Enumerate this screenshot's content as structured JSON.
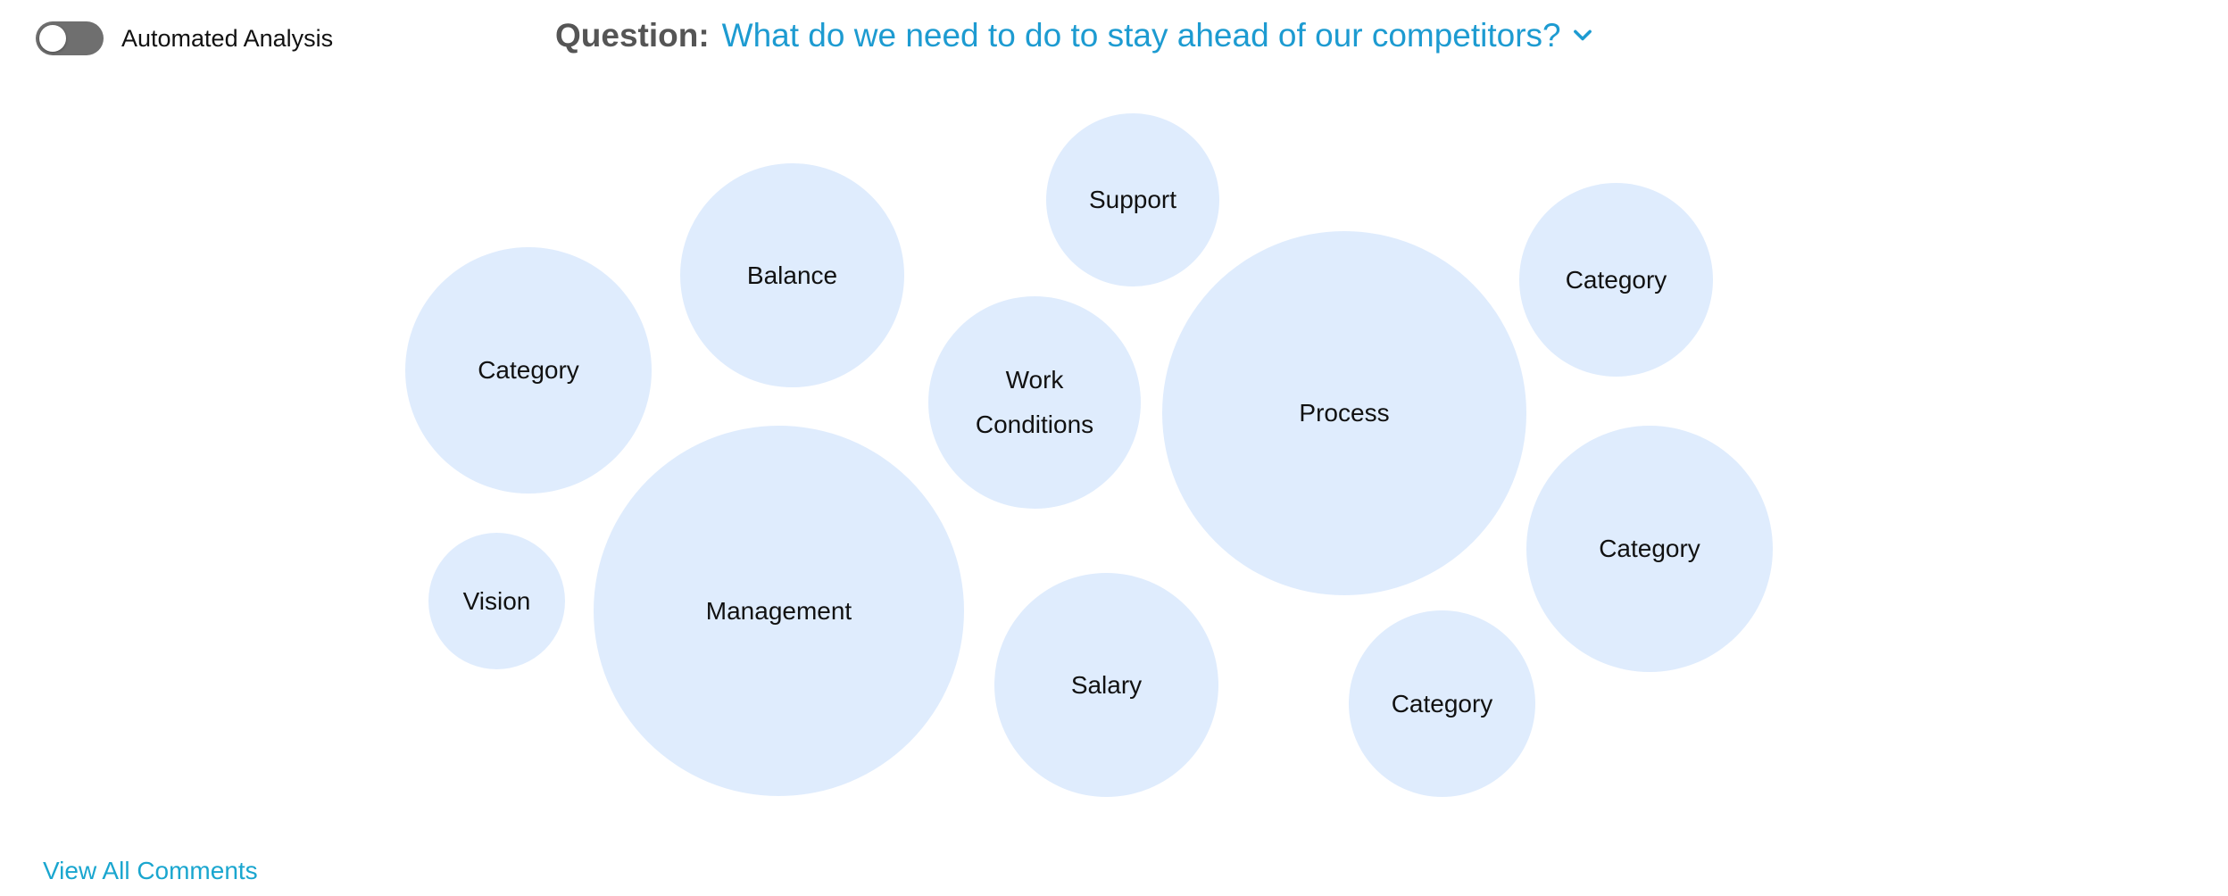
{
  "toggle": {
    "label": "Automated Analysis",
    "state": "off"
  },
  "question": {
    "label": "Question:",
    "selected": "What do we need to do to stay ahead of our competitors?",
    "icon": "chevron-down-icon"
  },
  "bubbles": [
    {
      "label": "Category"
    },
    {
      "label": "Balance"
    },
    {
      "label": "Support"
    },
    {
      "label": "Work Conditions"
    },
    {
      "label": "Process"
    },
    {
      "label": "Category"
    },
    {
      "label": "Vision"
    },
    {
      "label": "Management"
    },
    {
      "label": "Salary"
    },
    {
      "label": "Category"
    },
    {
      "label": "Category"
    }
  ],
  "footer": {
    "view_all_label": "View All Comments"
  },
  "colors": {
    "accent": "#1d9bd1",
    "bubble_fill": "#dfecfd",
    "toggle_off": "#6f6f6f",
    "link": "#1aa6cf"
  }
}
